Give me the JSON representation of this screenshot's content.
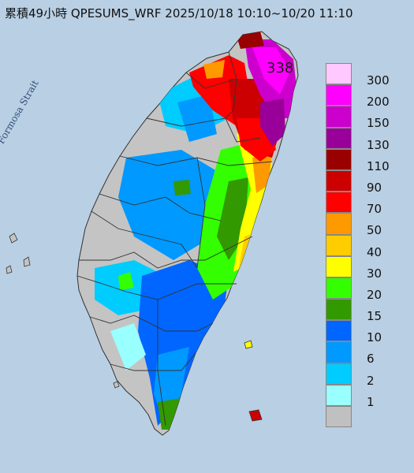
{
  "title": "累積49小時 QPESUMS_WRF 2025/10/18 10:10~10/20 11:10",
  "strait_label": "Formosa Strait",
  "max_value_label": "338",
  "legend": [
    {
      "label": "300",
      "color": "#ffc8ff"
    },
    {
      "label": "200",
      "color": "#ff00ff"
    },
    {
      "label": "150",
      "color": "#cc00cc"
    },
    {
      "label": "130",
      "color": "#990099"
    },
    {
      "label": "110",
      "color": "#990000"
    },
    {
      "label": "90",
      "color": "#cc0000"
    },
    {
      "label": "70",
      "color": "#ff0000"
    },
    {
      "label": "50",
      "color": "#ff9900"
    },
    {
      "label": "40",
      "color": "#ffcc00"
    },
    {
      "label": "30",
      "color": "#ffff00"
    },
    {
      "label": "20",
      "color": "#33ff00"
    },
    {
      "label": "15",
      "color": "#339900"
    },
    {
      "label": "10",
      "color": "#0066ff"
    },
    {
      "label": "6",
      "color": "#0099ff"
    },
    {
      "label": "2",
      "color": "#00ccff"
    },
    {
      "label": "1",
      "color": "#99ffff"
    },
    {
      "label": "",
      "color": "#c0c0c0"
    }
  ]
}
